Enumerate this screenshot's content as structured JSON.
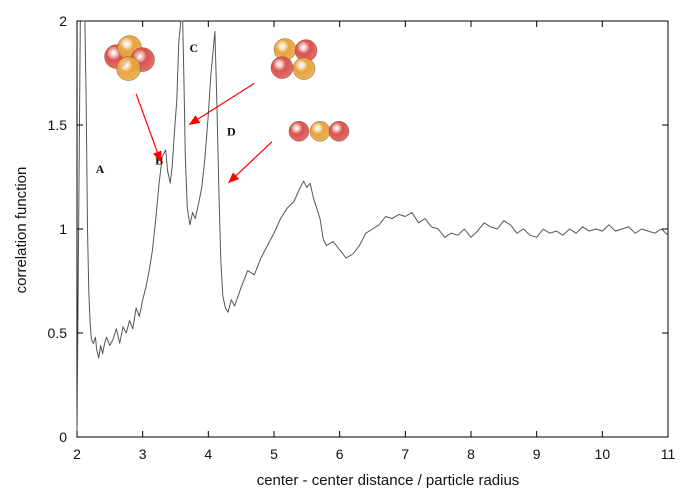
{
  "chart_data": {
    "type": "line",
    "title": "",
    "xlabel": "center - center distance / particle radius",
    "ylabel": "correlation function",
    "xlim": [
      2,
      11
    ],
    "ylim": [
      0,
      2
    ],
    "x_ticks": [
      "2",
      "3",
      "4",
      "5",
      "6",
      "7",
      "8",
      "9",
      "10",
      "11"
    ],
    "y_ticks": [
      "0",
      "0.5",
      "1",
      "1.5",
      "2"
    ],
    "grid": false,
    "legend": "none",
    "series": [
      {
        "color": "#555555",
        "x": [
          2.0,
          2.02,
          2.05,
          2.08,
          2.1,
          2.12,
          2.14,
          2.16,
          2.18,
          2.2,
          2.22,
          2.25,
          2.28,
          2.3,
          2.33,
          2.36,
          2.39,
          2.42,
          2.45,
          2.5,
          2.55,
          2.6,
          2.65,
          2.7,
          2.75,
          2.8,
          2.85,
          2.9,
          2.95,
          3.0,
          3.05,
          3.1,
          3.15,
          3.2,
          3.25,
          3.3,
          3.35,
          3.38,
          3.42,
          3.45,
          3.48,
          3.52,
          3.55,
          3.58,
          3.61,
          3.63,
          3.65,
          3.68,
          3.72,
          3.76,
          3.8,
          3.85,
          3.9,
          3.95,
          4.0,
          4.04,
          4.08,
          4.1,
          4.13,
          4.16,
          4.19,
          4.22,
          4.26,
          4.3,
          4.35,
          4.4,
          4.5,
          4.6,
          4.7,
          4.8,
          4.9,
          5.0,
          5.1,
          5.2,
          5.3,
          5.4,
          5.45,
          5.5,
          5.55,
          5.6,
          5.65,
          5.7,
          5.75,
          5.8,
          5.9,
          6.0,
          6.1,
          6.2,
          6.3,
          6.4,
          6.5,
          6.6,
          6.7,
          6.8,
          6.9,
          7.0,
          7.1,
          7.2,
          7.3,
          7.4,
          7.5,
          7.6,
          7.7,
          7.8,
          7.9,
          8.0,
          8.1,
          8.2,
          8.3,
          8.4,
          8.5,
          8.6,
          8.7,
          8.8,
          8.9,
          9.0,
          9.1,
          9.2,
          9.3,
          9.4,
          9.5,
          9.6,
          9.7,
          9.8,
          9.9,
          10.0,
          10.1,
          10.2,
          10.3,
          10.4,
          10.5,
          10.6,
          10.7,
          10.8,
          10.9,
          11.0
        ],
        "y": [
          0.0,
          0.8,
          2.0,
          2.0,
          2.0,
          2.0,
          1.6,
          1.0,
          0.7,
          0.55,
          0.47,
          0.45,
          0.48,
          0.42,
          0.38,
          0.44,
          0.4,
          0.45,
          0.48,
          0.44,
          0.47,
          0.52,
          0.45,
          0.53,
          0.5,
          0.56,
          0.52,
          0.62,
          0.58,
          0.66,
          0.72,
          0.8,
          0.9,
          1.05,
          1.22,
          1.35,
          1.38,
          1.28,
          1.22,
          1.3,
          1.45,
          1.62,
          1.9,
          2.0,
          2.0,
          1.7,
          1.35,
          1.1,
          1.02,
          1.08,
          1.05,
          1.12,
          1.2,
          1.35,
          1.55,
          1.75,
          1.88,
          1.95,
          1.6,
          1.2,
          0.85,
          0.68,
          0.62,
          0.6,
          0.66,
          0.63,
          0.72,
          0.8,
          0.78,
          0.86,
          0.92,
          0.98,
          1.05,
          1.1,
          1.13,
          1.2,
          1.23,
          1.2,
          1.22,
          1.15,
          1.1,
          1.05,
          0.95,
          0.92,
          0.94,
          0.9,
          0.86,
          0.88,
          0.92,
          0.98,
          1.0,
          1.02,
          1.06,
          1.05,
          1.07,
          1.06,
          1.08,
          1.03,
          1.05,
          1.01,
          1.0,
          0.96,
          0.98,
          0.97,
          1.0,
          0.96,
          0.99,
          1.03,
          1.01,
          1.0,
          1.04,
          1.02,
          0.98,
          1.0,
          0.97,
          0.96,
          1.0,
          0.98,
          0.99,
          0.97,
          1.0,
          0.98,
          1.01,
          0.99,
          1.0,
          0.99,
          1.02,
          0.99,
          1.0,
          1.01,
          0.98,
          1.0,
          0.99,
          0.98,
          1.0,
          0.97
        ]
      }
    ],
    "annotations": [
      {
        "label": "A",
        "x": 2.35,
        "y": 1.27
      },
      {
        "label": "B",
        "x": 3.25,
        "y": 1.31
      },
      {
        "label": "C",
        "x": 3.78,
        "y": 1.85
      },
      {
        "label": "D",
        "x": 4.35,
        "y": 1.45
      }
    ],
    "arrows": [
      {
        "from_x": 2.9,
        "from_y": 1.65,
        "to_x": 3.28,
        "to_y": 1.32,
        "color": "#ff0000"
      },
      {
        "from_x": 4.7,
        "from_y": 1.7,
        "to_x": 3.7,
        "to_y": 1.5,
        "color": "#ff0000"
      },
      {
        "from_x": 4.97,
        "from_y": 1.42,
        "to_x": 4.3,
        "to_y": 1.22,
        "color": "#ff0000"
      }
    ],
    "clusters": [
      {
        "name": "tetramer-cluster",
        "x": 2.8,
        "y": 1.8,
        "colors": [
          "#d9534f",
          "#e8a33d"
        ]
      },
      {
        "name": "rhombus-cluster",
        "x": 5.32,
        "y": 1.8,
        "colors": [
          "#d9534f",
          "#e8a33d"
        ]
      },
      {
        "name": "linear-cluster",
        "x": 5.7,
        "y": 1.47,
        "colors": [
          "#d9534f",
          "#e8a33d"
        ]
      }
    ]
  }
}
